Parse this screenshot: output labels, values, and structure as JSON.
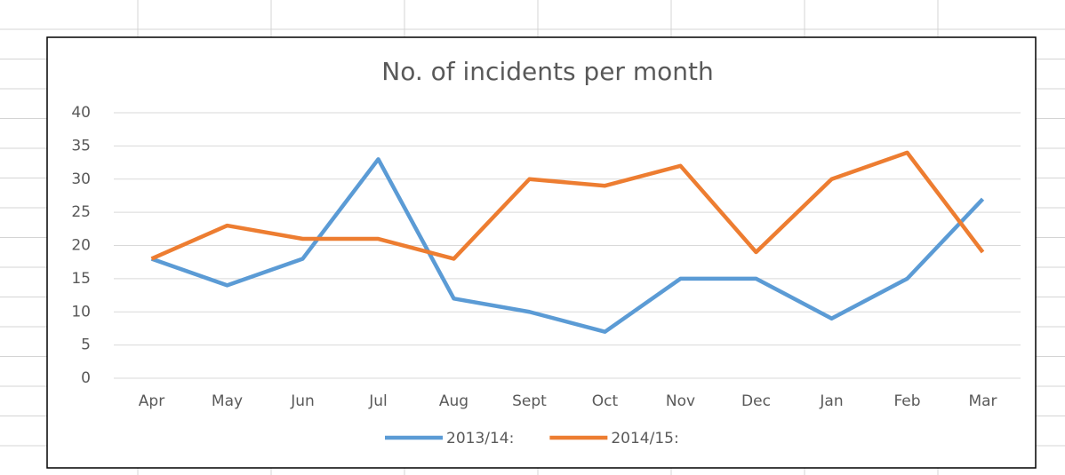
{
  "chart_data": {
    "type": "line",
    "title": "No. of incidents per month",
    "categories": [
      "Apr",
      "May",
      "Jun",
      "Jul",
      "Aug",
      "Sept",
      "Oct",
      "Nov",
      "Dec",
      "Jan",
      "Feb",
      "Mar"
    ],
    "series": [
      {
        "name": "2013/14:",
        "color": "#5b9bd5",
        "values": [
          18,
          14,
          18,
          33,
          12,
          10,
          7,
          15,
          15,
          9,
          15,
          27
        ]
      },
      {
        "name": "2014/15:",
        "color": "#ed7d31",
        "values": [
          18,
          23,
          21,
          21,
          18,
          30,
          29,
          32,
          19,
          30,
          34,
          19
        ]
      }
    ],
    "ylim": [
      0,
      40
    ],
    "yticks": [
      0,
      5,
      10,
      15,
      20,
      25,
      30,
      35,
      40
    ],
    "grid": true,
    "legend": "bottom"
  }
}
